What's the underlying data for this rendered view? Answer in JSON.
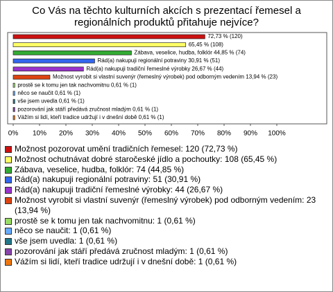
{
  "chart_data": {
    "type": "bar",
    "title": "Co Vás na těchto kulturních akcích s prezentací řemesel a regionálních produktů přitahuje nejvíce?",
    "categories": [
      "Možnost pozorovat umění tradičních řemesel: 120 (72,73 %)",
      "Možnost ochutnávat dobré staročeské jídlo a pochoutky: 108 (65,45 %)",
      "Zábava, veselice, hudba, folklór: 74 (44,85 %)",
      "Rád(a) nakupuji regionální potraviny: 51 (30,91 %)",
      "Rád(a) nakupuji tradiční řemeslné výrobky: 44 (26,67 %)",
      "Možnost vyrobit si vlastní suvenýr (řemeslný výrobek) pod odborným vedením: 23 (13,94 %)",
      "prostě se k tomu jen tak nachvomitnu: 1 (0,61 %)",
      "něco se naučit: 1 (0,61 %)",
      "vše jsem uvedla: 1 (0,61 %)",
      "pozorování jak stáří předává zručnost mladým: 1 (0,61 %)",
      "Vážím si lidí, kteří tradice udržují i v dnešní době: 1 (0,61 %)"
    ],
    "values": [
      72.73,
      65.45,
      44.85,
      30.91,
      26.67,
      13.94,
      0.61,
      0.61,
      0.61,
      0.61,
      0.61
    ],
    "value_labels": [
      "72,73 % (120)",
      "65,45 % (108)",
      "Zábava, veselice, hudba, folklór 44,85 % (74)",
      "Rád(a) nakupuji regionální potraviny 30,91 % (51)",
      "Rád(a) nakupuji tradiční řemeslné výrobky 26,67 % (44)",
      "Možnost vyrobit si vlastní suvenýr (řemeslný výrobek) pod odborným vedením 13,94 % (23)",
      "prostě se k tomu jen tak nachvomitnu 0,61 % (1)",
      "něco se naučit 0,61 % (1)",
      "vše jsem uvedla 0,61 % (1)",
      "pozorování jak stáří předává zručnost mladým 0,61 % (1)",
      "Vážím si lidí, kteří tradice udržují i v dnešní době 0,61 % (1)"
    ],
    "colors": [
      "#cc1111",
      "#ffff66",
      "#33aa33",
      "#3366ee",
      "#9933cc",
      "#dd4411",
      "#99dd66",
      "#66aaff",
      "#227788",
      "#8844aa",
      "#ee7711"
    ],
    "xlim": [
      0,
      100
    ],
    "xticks": [
      {
        "value": 0,
        "label": "0%"
      },
      {
        "value": 10,
        "label": "10%"
      },
      {
        "value": 20,
        "label": "20%"
      },
      {
        "value": 30,
        "label": "30%"
      },
      {
        "value": 40,
        "label": "40%"
      },
      {
        "value": 50,
        "label": "50%"
      },
      {
        "value": 60,
        "label": "60%"
      },
      {
        "value": 70,
        "label": "70%"
      },
      {
        "value": 80,
        "label": "80%"
      },
      {
        "value": 90,
        "label": "90%"
      },
      {
        "value": 100,
        "label": "100%"
      }
    ]
  }
}
